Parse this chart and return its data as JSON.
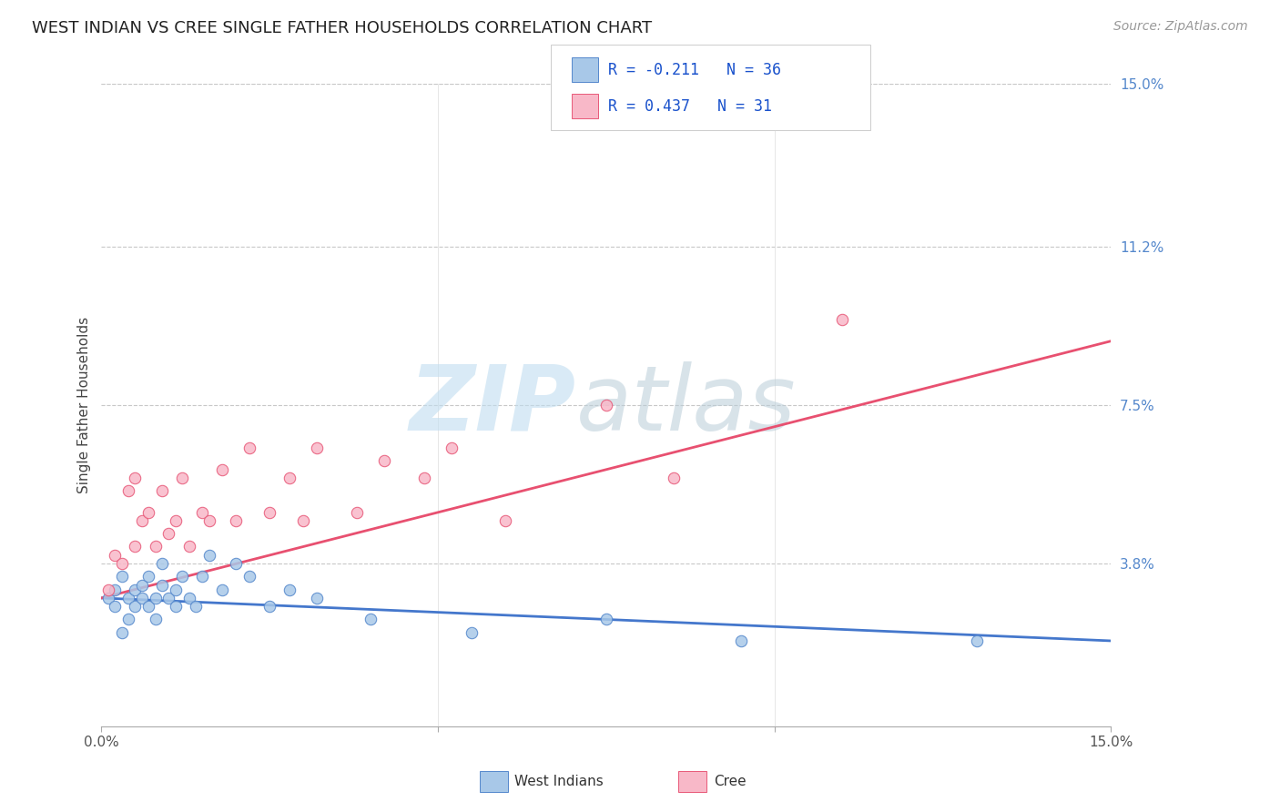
{
  "title": "WEST INDIAN VS CREE SINGLE FATHER HOUSEHOLDS CORRELATION CHART",
  "source": "Source: ZipAtlas.com",
  "ylabel": "Single Father Households",
  "xlim": [
    0.0,
    0.15
  ],
  "ylim": [
    0.0,
    0.15
  ],
  "ytick_labels_right": [
    "15.0%",
    "11.2%",
    "7.5%",
    "3.8%"
  ],
  "ytick_positions_right": [
    0.15,
    0.112,
    0.075,
    0.038
  ],
  "background_color": "#ffffff",
  "grid_color": "#c8c8c8",
  "wi_fill": "#a8c8e8",
  "wi_edge": "#5588cc",
  "cree_fill": "#f8b8c8",
  "cree_edge": "#e85878",
  "wi_line": "#4477cc",
  "cree_line": "#e85070",
  "R_wi": -0.211,
  "N_wi": 36,
  "R_cree": 0.437,
  "N_cree": 31,
  "legend_text_color": "#1a52cc",
  "wi_x": [
    0.001,
    0.002,
    0.002,
    0.003,
    0.003,
    0.004,
    0.004,
    0.005,
    0.005,
    0.006,
    0.006,
    0.007,
    0.007,
    0.008,
    0.008,
    0.009,
    0.009,
    0.01,
    0.011,
    0.011,
    0.012,
    0.013,
    0.014,
    0.015,
    0.016,
    0.018,
    0.02,
    0.022,
    0.025,
    0.028,
    0.032,
    0.04,
    0.055,
    0.075,
    0.095,
    0.13
  ],
  "wi_y": [
    0.03,
    0.028,
    0.032,
    0.022,
    0.035,
    0.03,
    0.025,
    0.032,
    0.028,
    0.033,
    0.03,
    0.028,
    0.035,
    0.03,
    0.025,
    0.033,
    0.038,
    0.03,
    0.032,
    0.028,
    0.035,
    0.03,
    0.028,
    0.035,
    0.04,
    0.032,
    0.038,
    0.035,
    0.028,
    0.032,
    0.03,
    0.025,
    0.022,
    0.025,
    0.02,
    0.02
  ],
  "cree_x": [
    0.001,
    0.002,
    0.003,
    0.004,
    0.005,
    0.005,
    0.006,
    0.007,
    0.008,
    0.009,
    0.01,
    0.011,
    0.012,
    0.013,
    0.015,
    0.016,
    0.018,
    0.02,
    0.022,
    0.025,
    0.028,
    0.03,
    0.032,
    0.038,
    0.042,
    0.048,
    0.052,
    0.06,
    0.075,
    0.085,
    0.11
  ],
  "cree_y": [
    0.032,
    0.04,
    0.038,
    0.055,
    0.042,
    0.058,
    0.048,
    0.05,
    0.042,
    0.055,
    0.045,
    0.048,
    0.058,
    0.042,
    0.05,
    0.048,
    0.06,
    0.048,
    0.065,
    0.05,
    0.058,
    0.048,
    0.065,
    0.05,
    0.062,
    0.058,
    0.065,
    0.048,
    0.075,
    0.058,
    0.095
  ],
  "wi_line_start_y": 0.03,
  "wi_line_end_y": 0.02,
  "cree_line_start_y": 0.03,
  "cree_line_end_y": 0.09
}
